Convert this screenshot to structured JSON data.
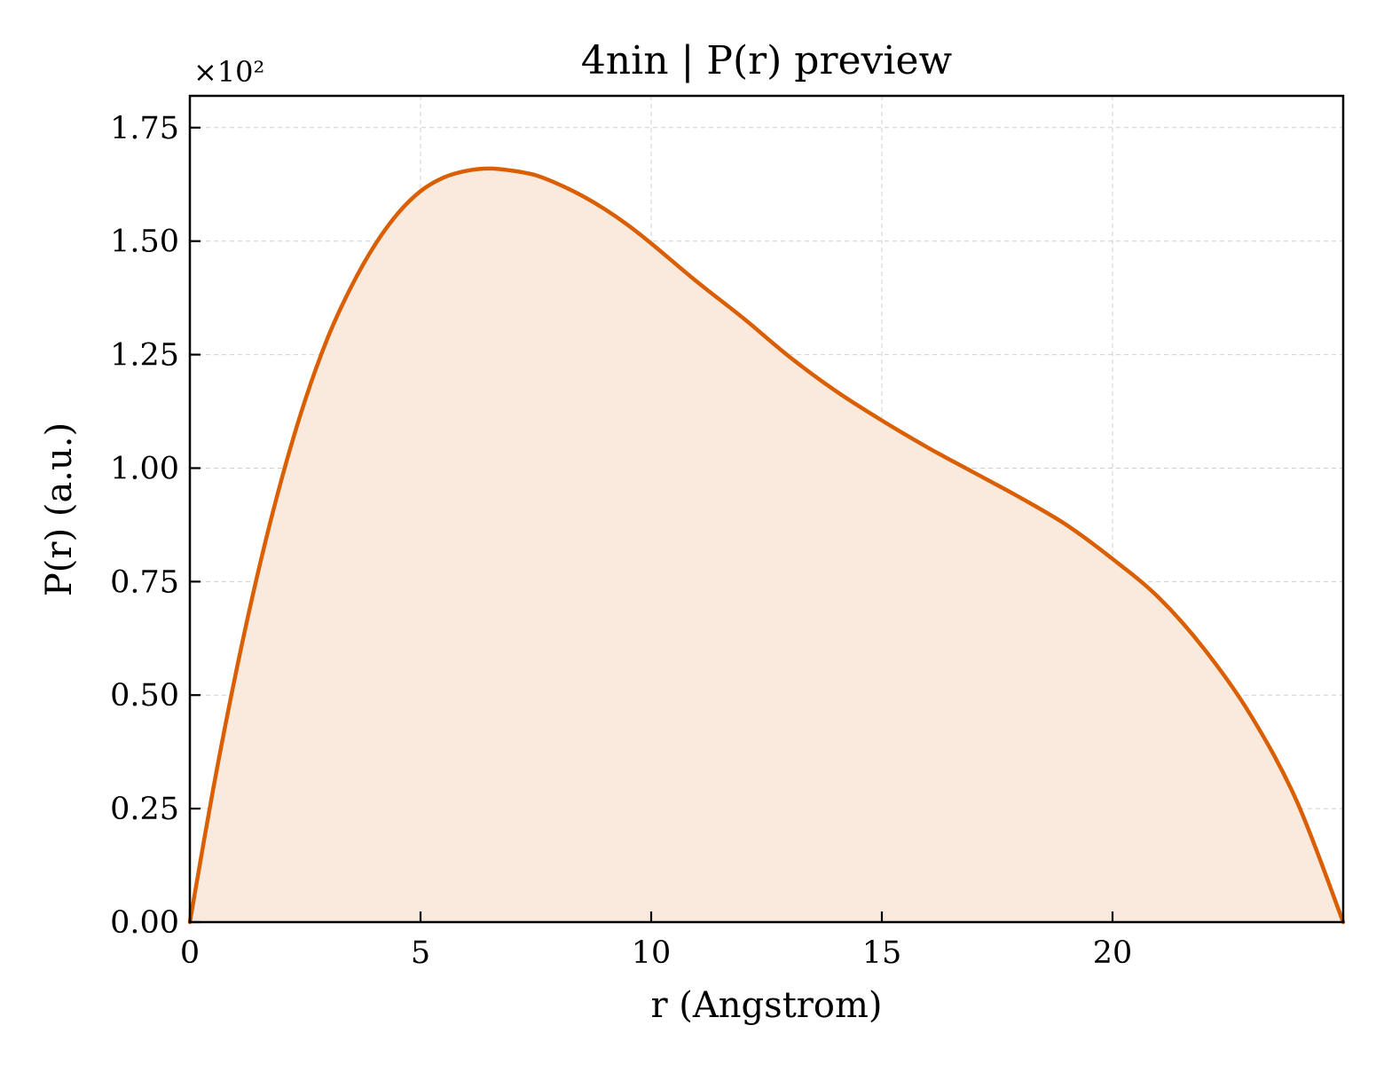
{
  "chart_data": {
    "type": "area",
    "title": "4nin | P(r) preview",
    "xlabel": "r (Angstrom)",
    "ylabel": "P(r) (a.u.)",
    "y_offset_label": "×10²",
    "xlim": [
      0,
      25
    ],
    "ylim": [
      0,
      1.82
    ],
    "x_ticks": [
      0,
      5,
      10,
      15,
      20
    ],
    "x_tick_labels": [
      "0",
      "5",
      "10",
      "15",
      "20"
    ],
    "y_ticks": [
      0,
      0.25,
      0.5,
      0.75,
      1.0,
      1.25,
      1.5,
      1.75
    ],
    "y_tick_labels": [
      "0.00",
      "0.25",
      "0.50",
      "0.75",
      "1.00",
      "1.25",
      "1.50",
      "1.75"
    ],
    "grid": true,
    "colors": {
      "line": "#d95f02",
      "fill": "#fae9dd"
    },
    "series": [
      {
        "x": [
          0,
          0.5,
          1,
          1.5,
          2,
          2.5,
          3,
          3.5,
          4,
          4.5,
          5,
          5.5,
          6,
          6.5,
          7,
          7.5,
          8,
          8.5,
          9,
          9.5,
          10,
          11,
          12,
          13,
          14,
          15,
          16,
          17,
          18,
          19,
          20,
          21,
          22,
          23,
          24,
          25
        ],
        "y": [
          0,
          0.29,
          0.55,
          0.78,
          0.98,
          1.15,
          1.29,
          1.4,
          1.49,
          1.56,
          1.61,
          1.64,
          1.655,
          1.66,
          1.655,
          1.645,
          1.625,
          1.6,
          1.57,
          1.535,
          1.495,
          1.41,
          1.33,
          1.245,
          1.17,
          1.105,
          1.045,
          0.99,
          0.935,
          0.875,
          0.8,
          0.715,
          0.6,
          0.455,
          0.265,
          0.0
        ]
      }
    ]
  }
}
